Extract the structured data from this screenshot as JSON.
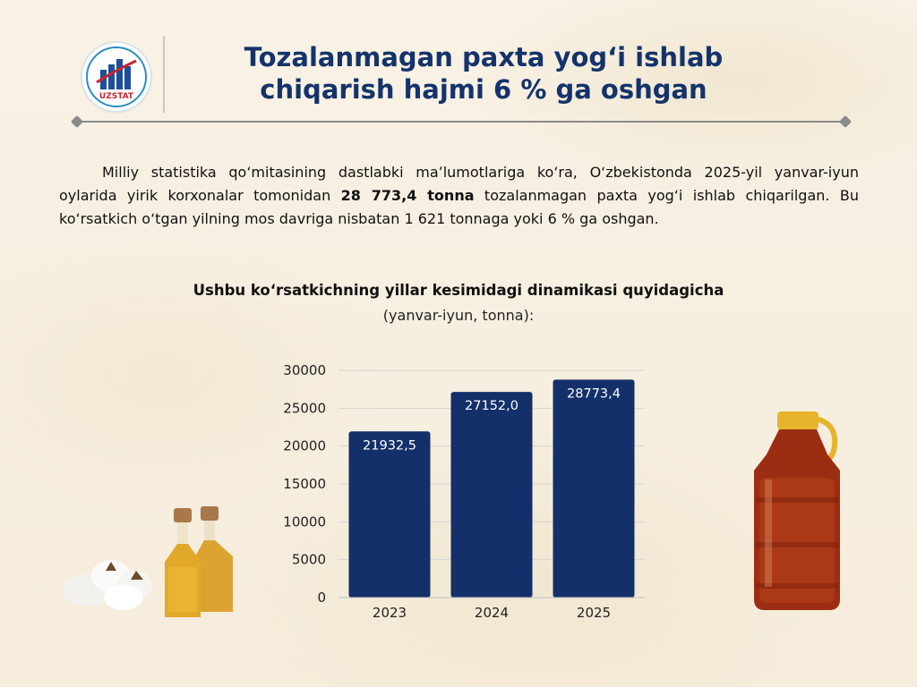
{
  "header": {
    "logo_text": "UZSTAT",
    "title_line1": "Tozalanmagan paxta yog‘i ishlab",
    "title_line2": "chiqarish hajmi 6 % ga oshgan"
  },
  "paragraph": {
    "part1": "Milliy statistika qo‘mitasining dastlabki ma’lumotlariga ko‘ra, O‘zbekistonda 2025-yil yanvar-iyun oylarida yirik korxonalar tomonidan ",
    "bold": "28 773,4 tonna",
    "part2": " tozalanmagan paxta yog‘i ishlab chiqarilgan. Bu ko‘rsatkich o‘tgan yilning mos davriga nisbatan 1 621 tonnaga yoki 6 % ga oshgan."
  },
  "chart_data": {
    "type": "bar",
    "title": "Ushbu ko‘rsatkichning yillar kesimidagi dinamikasi quyidagicha",
    "subtitle": "(yanvar-iyun, tonna):",
    "categories": [
      "2023",
      "2024",
      "2025"
    ],
    "values": [
      21932.5,
      27152.0,
      28773.4
    ],
    "value_labels": [
      "21932,5",
      "27152,0",
      "28773,4"
    ],
    "yticks": [
      "0",
      "5000",
      "10000",
      "15000",
      "20000",
      "25000",
      "30000"
    ],
    "ylim": [
      0,
      30000
    ],
    "grid": true,
    "bar_color": "#14306a"
  }
}
